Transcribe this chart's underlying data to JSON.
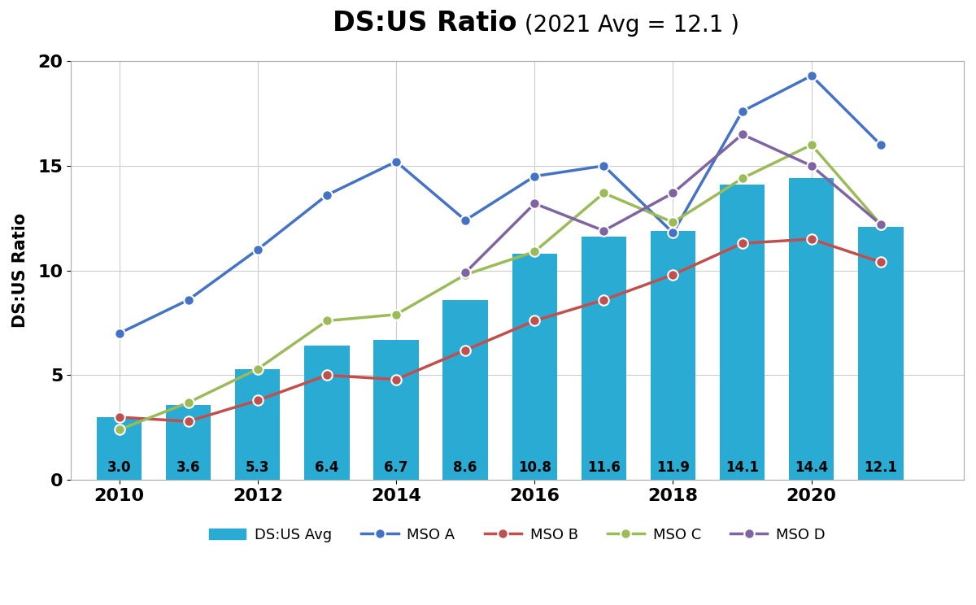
{
  "title_bold": "DS:US Ratio",
  "title_normal": " (2021 Avg = 12.1 )",
  "ylabel": "DS:US Ratio",
  "years": [
    2010,
    2011,
    2012,
    2013,
    2014,
    2015,
    2016,
    2017,
    2018,
    2019,
    2020,
    2021
  ],
  "bar_values": [
    3.0,
    3.6,
    5.3,
    6.4,
    6.7,
    8.6,
    10.8,
    11.6,
    11.9,
    14.1,
    14.4,
    12.1
  ],
  "bar_color": "#29ABD4",
  "mso_a": [
    7.0,
    8.6,
    11.0,
    13.6,
    15.2,
    12.4,
    14.5,
    15.0,
    11.8,
    17.6,
    19.3,
    16.0
  ],
  "mso_b": [
    3.0,
    2.8,
    3.8,
    5.0,
    4.8,
    6.2,
    7.6,
    8.6,
    9.8,
    11.3,
    11.5,
    10.4
  ],
  "mso_c": [
    2.4,
    3.7,
    5.3,
    7.6,
    7.9,
    9.8,
    10.9,
    13.7,
    12.3,
    14.4,
    16.0,
    12.2
  ],
  "mso_d": [
    null,
    null,
    null,
    null,
    null,
    9.9,
    13.2,
    11.9,
    13.7,
    16.5,
    15.0,
    12.2
  ],
  "mso_a_color": "#4472C4",
  "mso_b_color": "#C0504D",
  "mso_c_color": "#9BBB59",
  "mso_d_color": "#8064A2",
  "ylim": [
    0,
    20
  ],
  "yticks": [
    0,
    5,
    10,
    15,
    20
  ],
  "xtick_years": [
    2010,
    2012,
    2014,
    2016,
    2018,
    2020
  ],
  "background_color": "#FFFFFF",
  "plot_bg_color": "#FFFFFF",
  "grid_color": "#CCCCCC",
  "bar_width": 0.65,
  "marker_size": 9,
  "title_fontsize": 24,
  "subtitle_fontsize": 20,
  "tick_fontsize": 16,
  "ylabel_fontsize": 15,
  "label_fontsize": 12
}
